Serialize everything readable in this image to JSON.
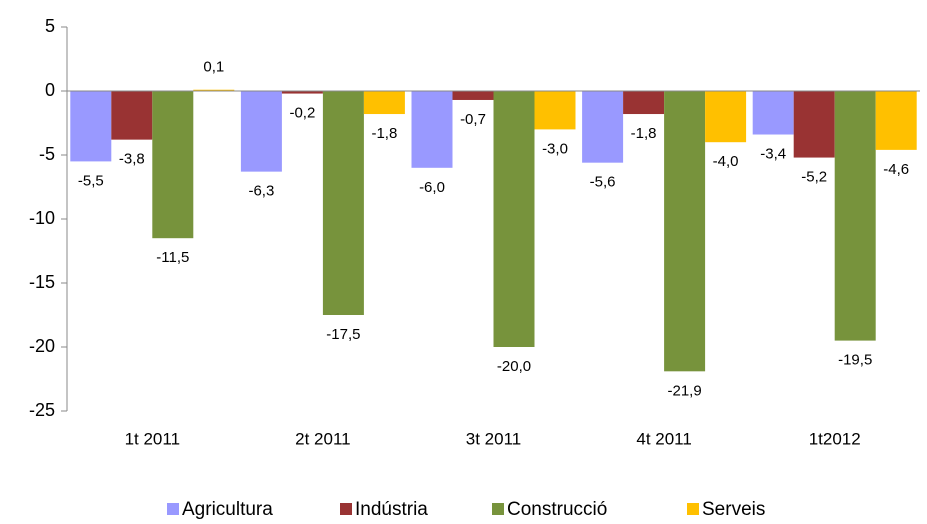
{
  "chart_data": {
    "type": "bar",
    "categories": [
      "1t 2011",
      "2t 2011",
      "3t 2011",
      "4t 2011",
      "1t2012"
    ],
    "series": [
      {
        "name": "Agricultura",
        "color": "#9999ff",
        "values": [
          -5.5,
          -6.3,
          -6.0,
          -5.6,
          -3.4
        ],
        "value_labels": [
          "-5,5",
          "-6,3",
          "-6,0",
          "-5,6",
          "-3,4"
        ]
      },
      {
        "name": "Indústria",
        "color": "#993333",
        "values": [
          -3.8,
          -0.2,
          -0.7,
          -1.8,
          -5.2
        ],
        "value_labels": [
          "-3,8",
          "-0,2",
          "-0,7",
          "-1,8",
          "-5,2"
        ]
      },
      {
        "name": "Construcció",
        "color": "#77933c",
        "values": [
          -11.5,
          -17.5,
          -20.0,
          -21.9,
          -19.5
        ],
        "value_labels": [
          "-11,5",
          "-17,5",
          "-20,0",
          "-21,9",
          "-19,5"
        ]
      },
      {
        "name": "Serveis",
        "color": "#ffc000",
        "values": [
          0.1,
          -1.8,
          -3.0,
          -4.0,
          -4.6
        ],
        "value_labels": [
          "0,1",
          "-1,8",
          "-3,0",
          "-4,0",
          "-4,6"
        ]
      }
    ],
    "ylim": [
      -25,
      5
    ],
    "yticks": [
      -25,
      -20,
      -15,
      -10,
      -5,
      0,
      5
    ],
    "legend": "bottom"
  }
}
